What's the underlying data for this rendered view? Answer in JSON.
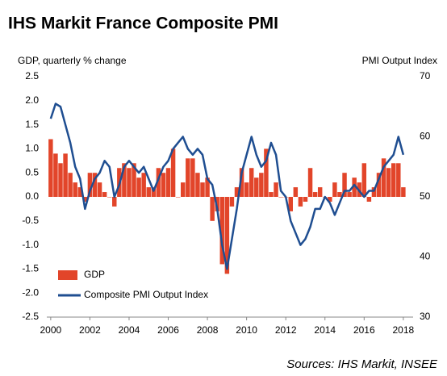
{
  "chart_data": {
    "type": "combo",
    "title": "IHS Markit France Composite PMI",
    "y_label": "GDP, quarterly % change",
    "y2_label": "PMI Output Index",
    "source": "Sources: IHS Markit, INSEE",
    "grid": false,
    "legend": "lower left",
    "x": [
      2000,
      2000.25,
      2000.5,
      2000.75,
      2001,
      2001.25,
      2001.5,
      2001.75,
      2002,
      2002.25,
      2002.5,
      2002.75,
      2003,
      2003.25,
      2003.5,
      2003.75,
      2004,
      2004.25,
      2004.5,
      2004.75,
      2005,
      2005.25,
      2005.5,
      2005.75,
      2006,
      2006.25,
      2006.5,
      2006.75,
      2007,
      2007.25,
      2007.5,
      2007.75,
      2008,
      2008.25,
      2008.5,
      2008.75,
      2009,
      2009.25,
      2009.5,
      2009.75,
      2010,
      2010.25,
      2010.5,
      2010.75,
      2011,
      2011.25,
      2011.5,
      2011.75,
      2012,
      2012.25,
      2012.5,
      2012.75,
      2013,
      2013.25,
      2013.5,
      2013.75,
      2014,
      2014.25,
      2014.5,
      2014.75,
      2015,
      2015.25,
      2015.5,
      2015.75,
      2016,
      2016.25,
      2016.5,
      2016.75,
      2017,
      2017.25,
      2017.5,
      2017.75,
      2018
    ],
    "series": [
      {
        "name": "GDP",
        "type": "bar",
        "color": "#e2452a",
        "values": [
          1.2,
          0.9,
          0.7,
          0.9,
          0.5,
          0.3,
          0.2,
          -0.1,
          0.5,
          0.5,
          0.3,
          0.1,
          0.0,
          -0.2,
          0.6,
          0.7,
          0.6,
          0.7,
          0.4,
          0.5,
          0.2,
          0.2,
          0.6,
          0.5,
          0.6,
          1.0,
          0.0,
          0.3,
          0.8,
          0.8,
          0.5,
          0.3,
          0.4,
          -0.5,
          -0.3,
          -1.4,
          -1.6,
          -0.2,
          0.2,
          0.6,
          0.3,
          0.6,
          0.4,
          0.5,
          1.0,
          0.1,
          0.3,
          0.0,
          0.0,
          -0.3,
          0.2,
          -0.2,
          -0.1,
          0.6,
          0.1,
          0.2,
          0.0,
          -0.1,
          0.3,
          0.1,
          0.5,
          0.1,
          0.4,
          0.3,
          0.7,
          -0.1,
          0.2,
          0.5,
          0.8,
          0.6,
          0.7,
          0.7,
          0.2
        ]
      },
      {
        "name": "Composite PMI Output Index",
        "type": "line",
        "axis": "y2",
        "color": "#1f4e91",
        "values": [
          63,
          65.5,
          65,
          62,
          59,
          55,
          53,
          48,
          51,
          53,
          54,
          56,
          55,
          50,
          52,
          55,
          56,
          55,
          54,
          55,
          53,
          51,
          53,
          55,
          56,
          58,
          59,
          60,
          58,
          57,
          58,
          57,
          53,
          52,
          48,
          42,
          38,
          43,
          48,
          54,
          57,
          60,
          57,
          55,
          56,
          59,
          57,
          51,
          50,
          46,
          44,
          42,
          43,
          45,
          48,
          48,
          50,
          49,
          47,
          49,
          51,
          51,
          52,
          51,
          50,
          51,
          51,
          53,
          55,
          56,
          57,
          60,
          57
        ]
      }
    ],
    "xlim": [
      1999.8,
      2018.5
    ],
    "xticks": [
      2000,
      2002,
      2004,
      2006,
      2008,
      2010,
      2012,
      2014,
      2016,
      2018
    ],
    "ylim": [
      -2.5,
      2.5
    ],
    "yticks": [
      2.5,
      {
        "value": 2,
        "label": "2.0"
      },
      1.5,
      {
        "value": 1,
        "label": "1.0"
      },
      0.5,
      {
        "value": 0,
        "label": "0.0"
      },
      -0.5,
      {
        "value": -1,
        "label": "-1.0"
      },
      -1.5,
      {
        "value": -2,
        "label": "-2.0"
      },
      -2.5
    ],
    "y2lim": [
      30,
      70
    ],
    "y2ticks": [
      30,
      40,
      50,
      60,
      70
    ]
  }
}
